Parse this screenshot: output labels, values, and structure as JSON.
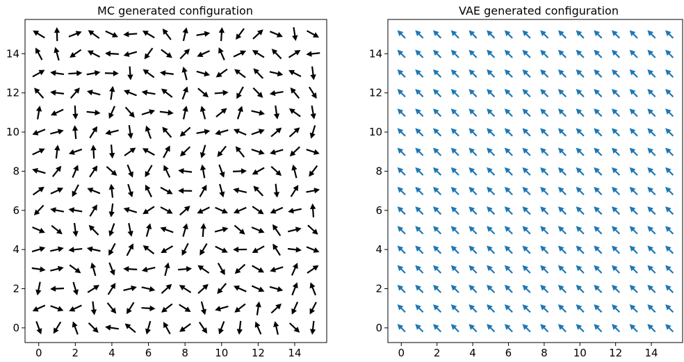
{
  "chart_data": [
    {
      "type": "quiver",
      "title": "MC generated configuration",
      "xlim": [
        -0.75,
        15.75
      ],
      "ylim": [
        -0.75,
        15.75
      ],
      "xticks": [
        "0",
        "2",
        "4",
        "6",
        "8",
        "10",
        "12",
        "14"
      ],
      "yticks": [
        "0",
        "2",
        "4",
        "6",
        "8",
        "10",
        "12",
        "14"
      ],
      "grid": [
        16,
        16
      ],
      "arrow_color": "#000000",
      "arrows": "random-orientation"
    },
    {
      "type": "quiver",
      "title": "VAE generated configuration",
      "xlim": [
        -0.75,
        15.75
      ],
      "ylim": [
        -0.75,
        15.75
      ],
      "xticks": [
        "0",
        "2",
        "4",
        "6",
        "8",
        "10",
        "12",
        "14"
      ],
      "yticks": [
        "0",
        "2",
        "4",
        "6",
        "8",
        "10",
        "12",
        "14"
      ],
      "grid": [
        16,
        16
      ],
      "arrow_color": "#1f77b4",
      "arrows": "uniform",
      "angle_deg": 135
    }
  ]
}
